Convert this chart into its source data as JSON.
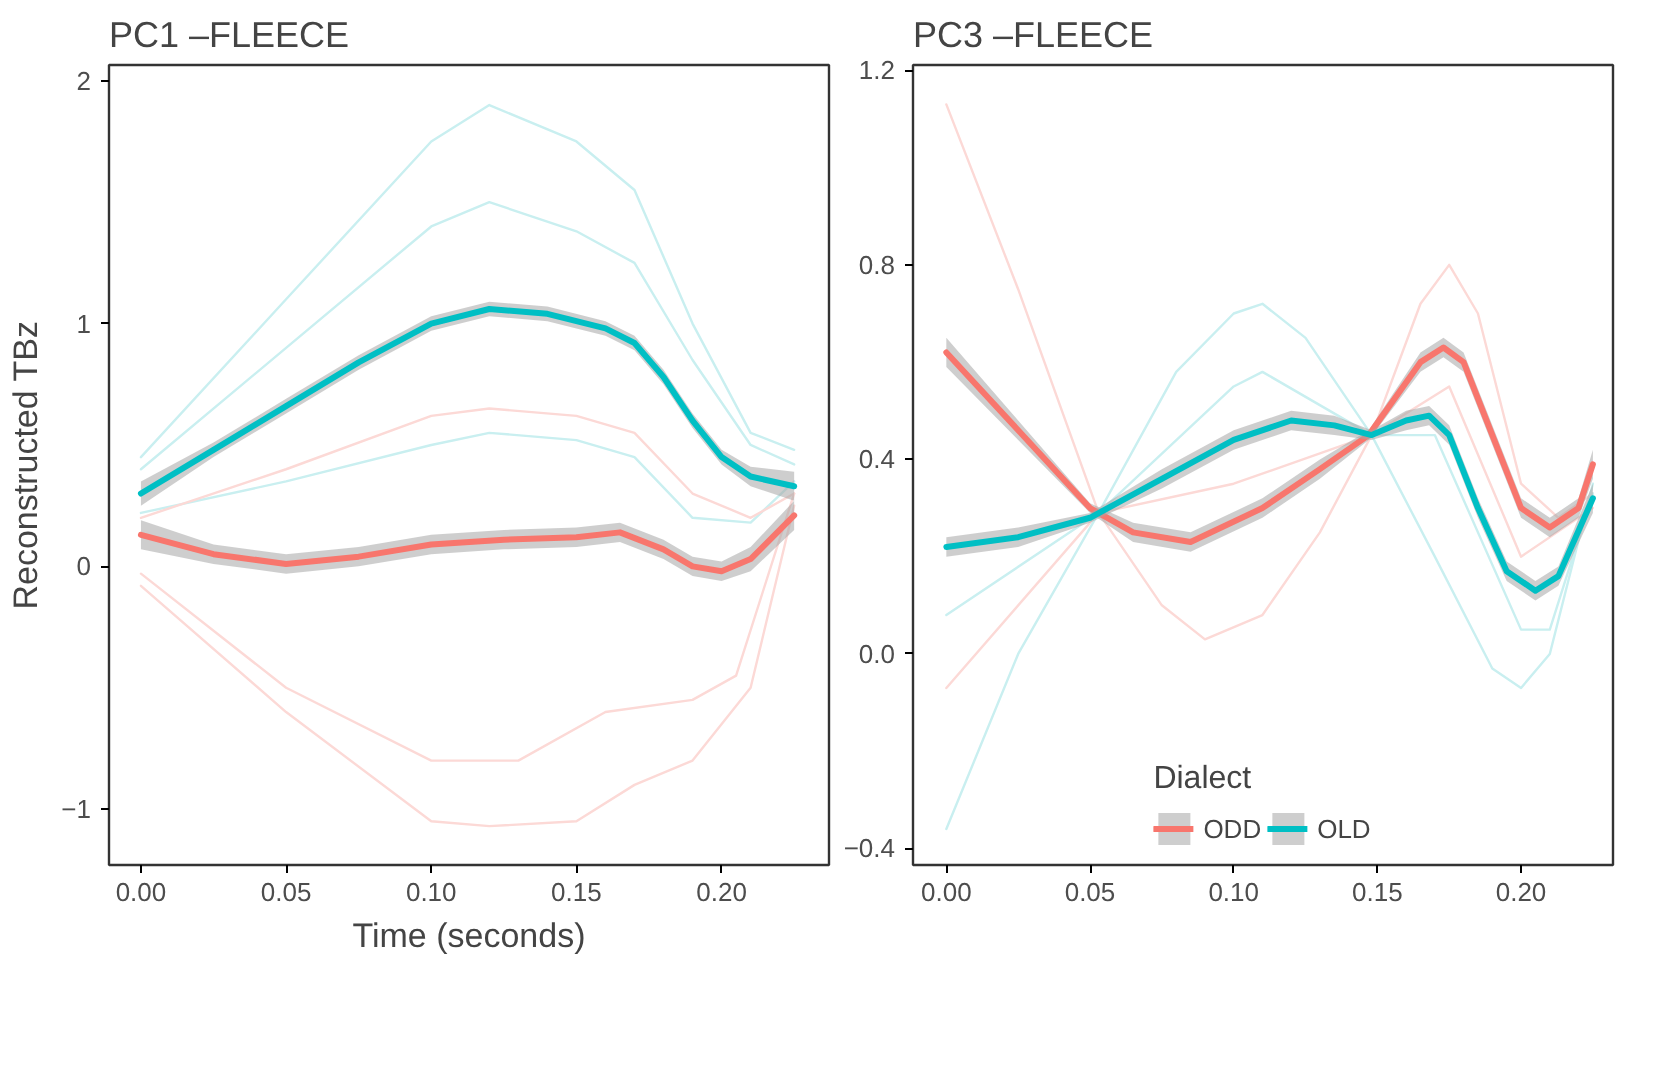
{
  "chart_data": [
    {
      "type": "line",
      "title": "PC1 –FLEECE",
      "xlabel": "Time (seconds)",
      "ylabel": "Reconstructed TBz",
      "xlim": [
        -0.011,
        0.237
      ],
      "ylim": [
        -1.23,
        2.065
      ],
      "xticks": [
        {
          "value": 0,
          "label": "0.00"
        },
        {
          "value": 0.05,
          "label": "0.05"
        },
        {
          "value": 0.1,
          "label": "0.10"
        },
        {
          "value": 0.15,
          "label": "0.15"
        },
        {
          "value": 0.2,
          "label": "0.20"
        }
      ],
      "yticks": [
        -1,
        0,
        1,
        2
      ],
      "series": [
        {
          "color": "#c9eff0",
          "x": [
            0,
            0.05,
            0.1,
            0.12,
            0.15,
            0.17,
            0.19,
            0.21,
            0.225
          ],
          "values": [
            0.45,
            1.1,
            1.75,
            1.9,
            1.75,
            1.55,
            1.0,
            0.55,
            0.48
          ]
        },
        {
          "color": "#c9eff0",
          "x": [
            0,
            0.05,
            0.1,
            0.12,
            0.15,
            0.17,
            0.19,
            0.21,
            0.225
          ],
          "values": [
            0.4,
            0.9,
            1.4,
            1.5,
            1.38,
            1.25,
            0.85,
            0.5,
            0.42
          ]
        },
        {
          "color": "#c9eff0",
          "x": [
            0,
            0.05,
            0.1,
            0.12,
            0.15,
            0.17,
            0.19,
            0.21,
            0.225
          ],
          "values": [
            0.22,
            0.35,
            0.5,
            0.55,
            0.52,
            0.45,
            0.2,
            0.18,
            0.35
          ]
        },
        {
          "color": "#fcd9d6",
          "x": [
            0,
            0.05,
            0.1,
            0.12,
            0.15,
            0.17,
            0.19,
            0.21,
            0.225
          ],
          "values": [
            0.2,
            0.4,
            0.62,
            0.65,
            0.62,
            0.55,
            0.3,
            0.2,
            0.3
          ]
        },
        {
          "color": "#fcd9d6",
          "x": [
            0,
            0.05,
            0.1,
            0.12,
            0.15,
            0.17,
            0.19,
            0.21,
            0.225
          ],
          "values": [
            -0.08,
            -0.6,
            -1.05,
            -1.07,
            -1.05,
            -0.9,
            -0.8,
            -0.5,
            0.25
          ]
        },
        {
          "color": "#fcd9d6",
          "x": [
            0,
            0.05,
            0.1,
            0.13,
            0.16,
            0.19,
            0.205,
            0.225
          ],
          "values": [
            -0.03,
            -0.5,
            -0.8,
            -0.8,
            -0.6,
            -0.55,
            -0.45,
            0.3
          ]
        },
        {
          "color": "#f8766d",
          "x": [
            0,
            0.025,
            0.05,
            0.075,
            0.1,
            0.125,
            0.15,
            0.165,
            0.18,
            0.19,
            0.2,
            0.21,
            0.225
          ],
          "values": [
            0.13,
            0.05,
            0.01,
            0.04,
            0.09,
            0.11,
            0.12,
            0.14,
            0.07,
            0.0,
            -0.02,
            0.03,
            0.21
          ],
          "lower": [
            0.07,
            0.01,
            -0.03,
            0.0,
            0.05,
            0.07,
            0.08,
            0.1,
            0.03,
            -0.04,
            -0.06,
            -0.02,
            0.15
          ],
          "upper": [
            0.19,
            0.09,
            0.05,
            0.08,
            0.13,
            0.15,
            0.16,
            0.18,
            0.11,
            0.04,
            0.02,
            0.08,
            0.27
          ]
        },
        {
          "color": "#00bfc4",
          "x": [
            0,
            0.025,
            0.05,
            0.075,
            0.1,
            0.12,
            0.14,
            0.16,
            0.17,
            0.18,
            0.19,
            0.2,
            0.21,
            0.225
          ],
          "values": [
            0.3,
            0.48,
            0.66,
            0.84,
            1.0,
            1.06,
            1.04,
            0.98,
            0.92,
            0.78,
            0.6,
            0.45,
            0.37,
            0.33
          ],
          "lower": [
            0.25,
            0.45,
            0.63,
            0.81,
            0.97,
            1.03,
            1.01,
            0.95,
            0.89,
            0.75,
            0.57,
            0.42,
            0.33,
            0.27
          ],
          "upper": [
            0.35,
            0.51,
            0.69,
            0.87,
            1.03,
            1.09,
            1.07,
            1.01,
            0.95,
            0.81,
            0.63,
            0.48,
            0.41,
            0.39
          ]
        }
      ]
    },
    {
      "type": "line",
      "title": "PC3 –FLEECE",
      "xlim": [
        -0.0116,
        0.232
      ],
      "ylim": [
        -0.434,
        1.211
      ],
      "xticks": [
        {
          "value": 0,
          "label": "0.00"
        },
        {
          "value": 0.05,
          "label": "0.05"
        },
        {
          "value": 0.1,
          "label": "0.10"
        },
        {
          "value": 0.15,
          "label": "0.15"
        },
        {
          "value": 0.2,
          "label": "0.20"
        }
      ],
      "yticks": [
        -0.4,
        {
          "value": 0,
          "label": "0.0"
        },
        0.4,
        0.8,
        1.2
      ],
      "legend": "bottom",
      "legend_title": "Dialect",
      "series": [
        {
          "color": "#fcd9d6",
          "x": [
            0,
            0.025,
            0.053,
            0.075,
            0.09,
            0.11,
            0.13,
            0.148,
            0.165,
            0.175,
            0.185,
            0.2,
            0.213,
            0.225
          ],
          "values": [
            1.13,
            0.75,
            0.29,
            0.1,
            0.03,
            0.08,
            0.25,
            0.45,
            0.72,
            0.8,
            0.7,
            0.35,
            0.28,
            0.33
          ]
        },
        {
          "color": "#fcd9d6",
          "x": [
            0,
            0.053,
            0.1,
            0.148,
            0.175,
            0.2,
            0.225
          ],
          "values": [
            -0.07,
            0.29,
            0.35,
            0.45,
            0.55,
            0.2,
            0.3
          ]
        },
        {
          "color": "#c9eff0",
          "x": [
            0,
            0.025,
            0.053,
            0.08,
            0.1,
            0.11,
            0.125,
            0.148,
            0.17,
            0.19,
            0.2,
            0.21,
            0.225
          ],
          "values": [
            -0.36,
            0.0,
            0.29,
            0.58,
            0.7,
            0.72,
            0.65,
            0.45,
            0.2,
            -0.03,
            -0.07,
            0.0,
            0.35
          ]
        },
        {
          "color": "#c9eff0",
          "x": [
            0,
            0.053,
            0.1,
            0.11,
            0.148,
            0.17,
            0.2,
            0.21,
            0.225
          ],
          "values": [
            0.08,
            0.29,
            0.55,
            0.58,
            0.45,
            0.45,
            0.05,
            0.05,
            0.33
          ]
        },
        {
          "name": "ODD",
          "color": "#f8766d",
          "x": [
            0,
            0.025,
            0.05,
            0.065,
            0.085,
            0.11,
            0.13,
            0.147,
            0.165,
            0.173,
            0.18,
            0.19,
            0.2,
            0.21,
            0.22,
            0.225
          ],
          "values": [
            0.62,
            0.46,
            0.3,
            0.25,
            0.23,
            0.3,
            0.38,
            0.45,
            0.6,
            0.63,
            0.6,
            0.45,
            0.3,
            0.26,
            0.3,
            0.39
          ],
          "lower": [
            0.59,
            0.44,
            0.29,
            0.23,
            0.21,
            0.28,
            0.36,
            0.44,
            0.58,
            0.61,
            0.58,
            0.43,
            0.28,
            0.24,
            0.28,
            0.36
          ],
          "upper": [
            0.65,
            0.48,
            0.31,
            0.27,
            0.25,
            0.32,
            0.4,
            0.46,
            0.62,
            0.65,
            0.62,
            0.47,
            0.32,
            0.28,
            0.32,
            0.42
          ]
        },
        {
          "name": "OLD",
          "color": "#00bfc4",
          "x": [
            0,
            0.025,
            0.05,
            0.075,
            0.1,
            0.12,
            0.135,
            0.148,
            0.16,
            0.168,
            0.175,
            0.185,
            0.195,
            0.205,
            0.213,
            0.225
          ],
          "values": [
            0.22,
            0.24,
            0.28,
            0.36,
            0.44,
            0.48,
            0.47,
            0.45,
            0.48,
            0.49,
            0.45,
            0.3,
            0.17,
            0.13,
            0.16,
            0.32
          ],
          "lower": [
            0.2,
            0.22,
            0.27,
            0.34,
            0.42,
            0.46,
            0.45,
            0.44,
            0.46,
            0.47,
            0.43,
            0.28,
            0.15,
            0.11,
            0.14,
            0.29
          ],
          "upper": [
            0.24,
            0.26,
            0.29,
            0.38,
            0.46,
            0.5,
            0.49,
            0.46,
            0.5,
            0.51,
            0.47,
            0.32,
            0.19,
            0.15,
            0.18,
            0.35
          ]
        }
      ]
    }
  ]
}
